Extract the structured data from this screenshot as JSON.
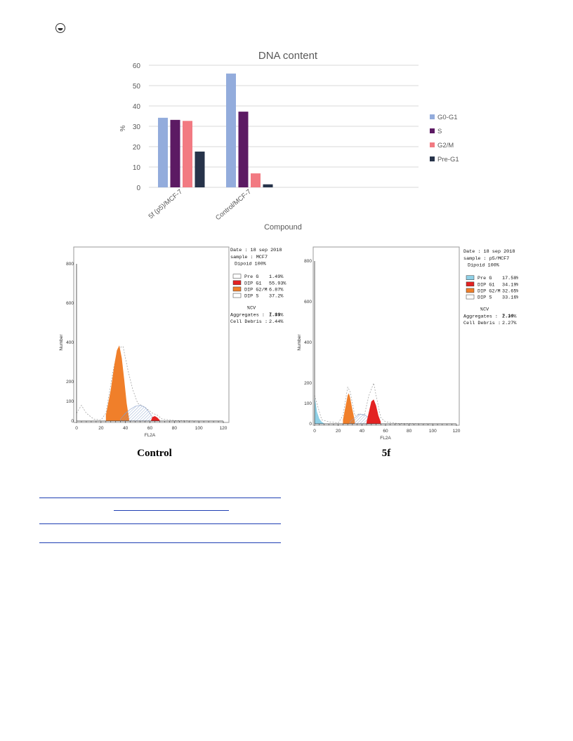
{
  "page_icon": "circle-dot-icon",
  "chart_data": [
    {
      "type": "bar",
      "title": "DNA content",
      "xlabel": "Compound",
      "ylabel": "%",
      "categories": [
        "5f (p5)/MCF-7",
        "Control/MCF-7"
      ],
      "ylim": [
        0,
        60
      ],
      "yticks": [
        0,
        10,
        20,
        30,
        40,
        50,
        60
      ],
      "grid": true,
      "legend_position": "right",
      "series": [
        {
          "name": "G0-G1",
          "color": "#93acdc",
          "values": [
            34.19,
            55.93
          ]
        },
        {
          "name": "S",
          "color": "#5c1a63",
          "values": [
            33.16,
            37.2
          ]
        },
        {
          "name": "G2/M",
          "color": "#f27a82",
          "values": [
            32.65,
            6.87
          ]
        },
        {
          "name": "Pre-G1",
          "color": "#27334a",
          "values": [
            17.58,
            1.49
          ]
        }
      ]
    },
    {
      "type": "area",
      "caption": "Control",
      "xlabel": "FL2A",
      "ylabel": "Number",
      "xlim": [
        0,
        120
      ],
      "ylim": [
        0,
        800
      ],
      "xticks": [
        0,
        20,
        40,
        60,
        80,
        100,
        120
      ],
      "yticks": [
        0,
        100,
        200,
        400,
        600,
        800
      ],
      "info": {
        "date": "Date : 18 sep 2018",
        "sample": "sample : MCF7",
        "diploid": "Dipoid 100%",
        "legend": [
          {
            "label": "Pre G",
            "value": "1.49%",
            "color": "#ffffff"
          },
          {
            "label": "DIP G1",
            "value": "55.93%",
            "color": "#e32222"
          },
          {
            "label": "DIP G2/M",
            "value": "6.87%",
            "color": "#f07f2a"
          },
          {
            "label": "DIP S",
            "value": "37.2%",
            "color": "#ffffff"
          }
        ],
        "cv_label": "%CV",
        "cv_value": "7.11",
        "aggregates_label": "Aggregates  :",
        "aggregates_value": "1.89%",
        "debris_label": "Cell Debris :",
        "debris_value": "2.44%"
      }
    },
    {
      "type": "area",
      "caption": "5f",
      "xlabel": "FL2A",
      "ylabel": "Number",
      "xlim": [
        0,
        120
      ],
      "ylim": [
        0,
        800
      ],
      "xticks": [
        0,
        20,
        40,
        60,
        80,
        100,
        120
      ],
      "yticks": [
        0,
        100,
        200,
        400,
        600,
        800
      ],
      "info": {
        "date": "Date : 18 sep 2018",
        "sample": "sample : p5/MCF7",
        "diploid": "Dipoid 100%",
        "legend": [
          {
            "label": "Pre G",
            "value": "17.58%",
            "color": "#8fd0e6"
          },
          {
            "label": "DIP G1",
            "value": "34.19%",
            "color": "#e32222"
          },
          {
            "label": "DIP G2/M",
            "value": "32.65%",
            "color": "#f07f2a"
          },
          {
            "label": "DIP S",
            "value": "33.16%",
            "color": "#ffffff"
          }
        ],
        "cv_label": "%CV",
        "cv_value": "7.14",
        "aggregates_label": "Aggregates  :",
        "aggregates_value": "2.39%",
        "debris_label": "Cell Debris :",
        "debris_value": "2.27%"
      }
    }
  ]
}
